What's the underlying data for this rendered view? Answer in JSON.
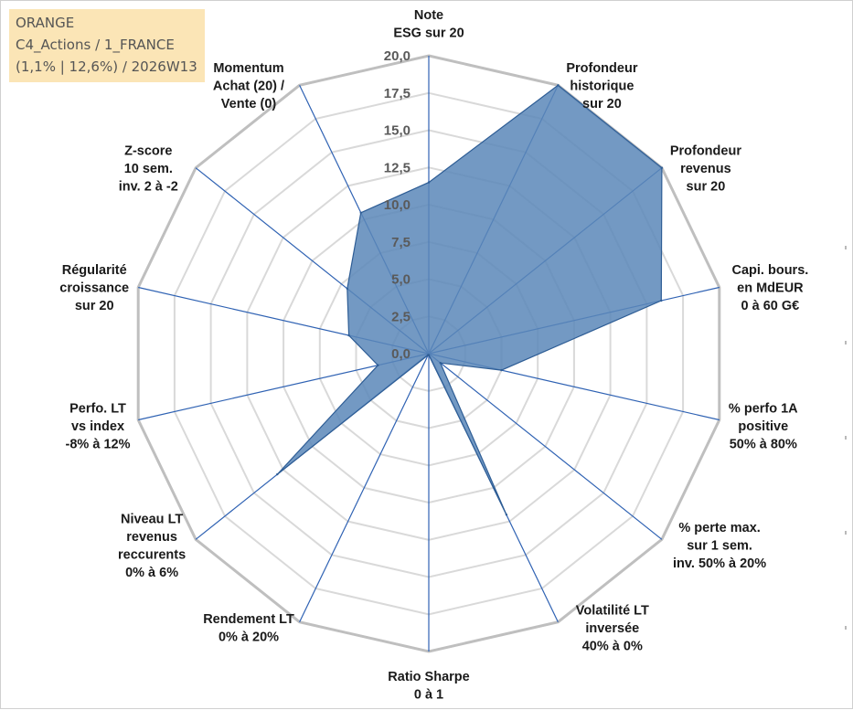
{
  "info": {
    "company": "ORANGE",
    "category": "C4_Actions / 1_FRANCE",
    "stats": "(1,1% | 12,6%) / 2026W13"
  },
  "colors": {
    "fill": "#5b87b9",
    "stroke": "#2e5d95",
    "spokes": "#2f62b3",
    "grid_outer": "#bfbfbf",
    "grid_inner": "#d9d9d9",
    "info_bg": "#fbe5b6"
  },
  "chart_data": {
    "type": "radar",
    "title": "",
    "rmin": 0,
    "rmax": 20,
    "grid_step": 2.5,
    "tick_labels": [
      "0,0",
      "2,5",
      "5,0",
      "7,5",
      "10,0",
      "12,5",
      "15,0",
      "17,5",
      "20,0"
    ],
    "axes": [
      {
        "label": [
          "Note",
          "ESG sur 20"
        ],
        "value": 11.5
      },
      {
        "label": [
          "Profondeur",
          "historique",
          "sur 20"
        ],
        "value": 20.0
      },
      {
        "label": [
          "Profondeur",
          "revenus",
          "sur 20"
        ],
        "value": 20.0
      },
      {
        "label": [
          "Capi. bours.",
          "en MdEUR",
          "0 à 60 G€"
        ],
        "value": 16.0
      },
      {
        "label": [
          "% perfo 1A",
          "positive",
          "50% à 80%"
        ],
        "value": 5.0
      },
      {
        "label": [
          "% perte max.",
          "sur 1 sem.",
          "inv. 50% à 20%"
        ],
        "value": 1.0
      },
      {
        "label": [
          "Volatilité LT",
          "inversée",
          "40% à 0%"
        ],
        "value": 12.0
      },
      {
        "label": [
          "Ratio Sharpe",
          "0 à 1"
        ],
        "value": 0.1
      },
      {
        "label": [
          "Rendement LT",
          "0% à 20%"
        ],
        "value": 0.1
      },
      {
        "label": [
          "Niveau LT",
          "revenus",
          "reccurents",
          "0% à 6%"
        ],
        "value": 13.0
      },
      {
        "label": [
          "Perfo. LT",
          "vs index",
          "-8% à 12%"
        ],
        "value": 3.5
      },
      {
        "label": [
          "Régularité",
          "croissance",
          "sur 20"
        ],
        "value": 5.5
      },
      {
        "label": [
          "Z-score",
          "10 sem.",
          "inv. 2 à -2"
        ],
        "value": 7.0
      },
      {
        "label": [
          "Momentum",
          "Achat (20) /",
          "Vente (0)"
        ],
        "value": 10.5
      }
    ]
  }
}
